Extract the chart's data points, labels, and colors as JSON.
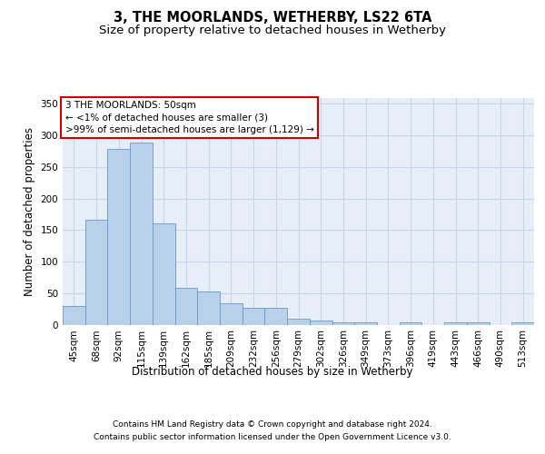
{
  "title": "3, THE MOORLANDS, WETHERBY, LS22 6TA",
  "subtitle": "Size of property relative to detached houses in Wetherby",
  "xlabel": "Distribution of detached houses by size in Wetherby",
  "ylabel": "Number of detached properties",
  "footer_line1": "Contains HM Land Registry data © Crown copyright and database right 2024.",
  "footer_line2": "Contains public sector information licensed under the Open Government Licence v3.0.",
  "annotation_line1": "3 THE MOORLANDS: 50sqm",
  "annotation_line2": "← <1% of detached houses are smaller (3)",
  "annotation_line3": ">99% of semi-detached houses are larger (1,129) →",
  "bar_labels": [
    "45sqm",
    "68sqm",
    "92sqm",
    "115sqm",
    "139sqm",
    "162sqm",
    "185sqm",
    "209sqm",
    "232sqm",
    "256sqm",
    "279sqm",
    "302sqm",
    "326sqm",
    "349sqm",
    "373sqm",
    "396sqm",
    "419sqm",
    "443sqm",
    "466sqm",
    "490sqm",
    "513sqm"
  ],
  "bar_values": [
    29,
    167,
    278,
    289,
    160,
    58,
    52,
    34,
    26,
    26,
    10,
    6,
    4,
    3,
    0,
    3,
    0,
    3,
    3,
    0,
    4
  ],
  "bar_color": "#b8d0ea",
  "bar_edge_color": "#6699cc",
  "highlight_color": "#cc0000",
  "annotation_box_bg": "#ffffff",
  "annotation_box_edge": "#cc0000",
  "ylim": [
    0,
    360
  ],
  "yticks": [
    0,
    50,
    100,
    150,
    200,
    250,
    300,
    350
  ],
  "grid_color": "#c8d4e8",
  "background_color": "#e8eef8",
  "fig_background": "#ffffff",
  "title_fontsize": 10.5,
  "subtitle_fontsize": 9.5,
  "ylabel_fontsize": 8.5,
  "xlabel_fontsize": 8.5,
  "tick_fontsize": 7.5,
  "annotation_fontsize": 7.5,
  "footer_fontsize": 6.5
}
